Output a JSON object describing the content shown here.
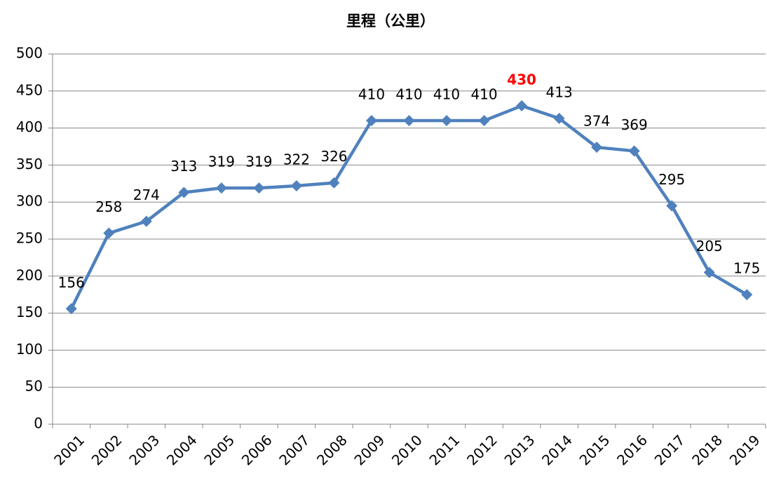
{
  "chart_data": {
    "type": "line",
    "title": "里程（公里）",
    "categories": [
      "2001",
      "2002",
      "2003",
      "2004",
      "2005",
      "2006",
      "2007",
      "2008",
      "2009",
      "2010",
      "2011",
      "2012",
      "2013",
      "2014",
      "2015",
      "2016",
      "2017",
      "2018",
      "2019"
    ],
    "series": [
      {
        "name": "里程（公里）",
        "color": "#4f81bd",
        "values": [
          156,
          258,
          274,
          313,
          319,
          319,
          322,
          326,
          410,
          410,
          410,
          410,
          430,
          413,
          374,
          369,
          295,
          205,
          175
        ]
      }
    ],
    "ylim": [
      0,
      500
    ],
    "yticks": [
      0,
      50,
      100,
      150,
      200,
      250,
      300,
      350,
      400,
      450,
      500
    ],
    "grid": true,
    "highlight_index": 12,
    "highlight_color": "#ff0000"
  }
}
